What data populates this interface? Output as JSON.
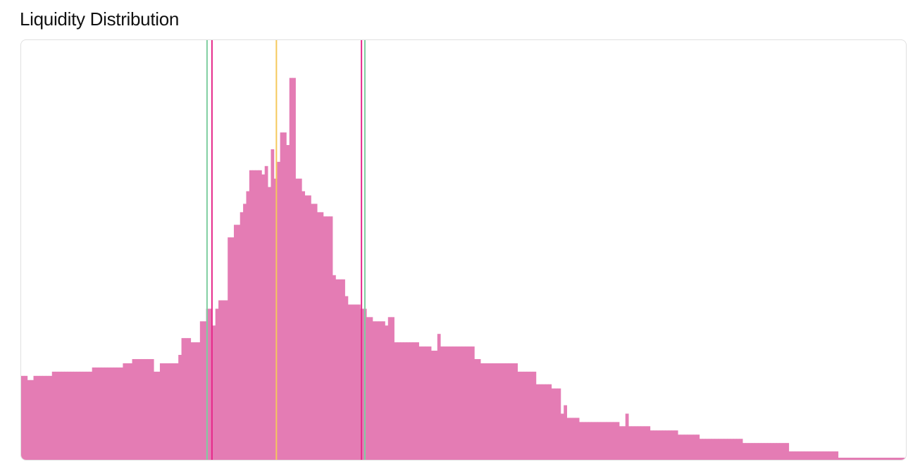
{
  "title": "Liquidity Distribution",
  "chart_data": {
    "type": "bar",
    "title": "Liquidity Distribution",
    "xlabel": "",
    "ylabel": "",
    "grid": false,
    "legend": "none",
    "ylim": [
      0,
      100
    ],
    "bar_color": "#e47cb4",
    "values": [
      20,
      20,
      19,
      19,
      20,
      20,
      20,
      20,
      20,
      20,
      21,
      21,
      21,
      21,
      21,
      21,
      21,
      21,
      21,
      21,
      21,
      21,
      21,
      22,
      22,
      22,
      22,
      22,
      22,
      22,
      22,
      22,
      22,
      23,
      23,
      23,
      24,
      24,
      24,
      24,
      24,
      24,
      24,
      21,
      21,
      23,
      23,
      23,
      23,
      23,
      23,
      25,
      29,
      29,
      29,
      28,
      28,
      28,
      33,
      33,
      36,
      36,
      32,
      36,
      38,
      38,
      38,
      53,
      53,
      56,
      56,
      59,
      61,
      64,
      69,
      69,
      69,
      69,
      68,
      70,
      65,
      74,
      67,
      71,
      78,
      78,
      75,
      91,
      91,
      67,
      67,
      64,
      63,
      63,
      61,
      61,
      59,
      59,
      58,
      58,
      58,
      44,
      43,
      43,
      43,
      39,
      37,
      37,
      37,
      37,
      36,
      36,
      34,
      34,
      33,
      33,
      33,
      33,
      32,
      34,
      34,
      28,
      28,
      28,
      28,
      28,
      28,
      28,
      28,
      27,
      27,
      27,
      27,
      26,
      26,
      30,
      27,
      27,
      27,
      27,
      27,
      27,
      27,
      27,
      27,
      27,
      27,
      24,
      24,
      23,
      23,
      23,
      23,
      23,
      23,
      23,
      23,
      23,
      23,
      23,
      23,
      21,
      21,
      21,
      21,
      21,
      21,
      18,
      18,
      18,
      18,
      18,
      17,
      17,
      17,
      11,
      13,
      10,
      10,
      10,
      10,
      9,
      9,
      9,
      9,
      9,
      9,
      9,
      9,
      9,
      9,
      9,
      9,
      9,
      8,
      8,
      11,
      8,
      8,
      8,
      8,
      8,
      8,
      8,
      7,
      7,
      7,
      7,
      7,
      7,
      7,
      7,
      7,
      6,
      6,
      6,
      6,
      6,
      6,
      6,
      5,
      5,
      5,
      5,
      5,
      5,
      5,
      5,
      5,
      5,
      5,
      5,
      5,
      5,
      4,
      4,
      4,
      4,
      4,
      4,
      4,
      4,
      4,
      4,
      4,
      4,
      4,
      4,
      4,
      2,
      2,
      2,
      2,
      2,
      2,
      2,
      2,
      2,
      2,
      2,
      2,
      2,
      2,
      2,
      2,
      0.5,
      0.5,
      0.5,
      0.5,
      0.5,
      0.5,
      0.5,
      0.5,
      0.5,
      0.5,
      0.5,
      0.5,
      0.5,
      0.5,
      0.5,
      0.5,
      0.5,
      0.5,
      0.5,
      0.5,
      0.5,
      0.5
    ],
    "reference_lines": [
      {
        "x": 60.3,
        "color": "#7fcea0"
      },
      {
        "x": 61.9,
        "color": "#e6288a"
      },
      {
        "x": 82.8,
        "color": "#f5c85c"
      },
      {
        "x": 110.4,
        "color": "#e6288a"
      },
      {
        "x": 111.5,
        "color": "#7fcea0"
      }
    ]
  }
}
